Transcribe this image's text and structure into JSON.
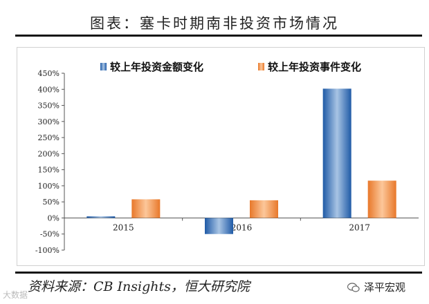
{
  "header": {
    "title": "图表：塞卡时期南非投资市场情况"
  },
  "footer": {
    "source": "资料来源：CB Insights，恒大研究院",
    "brand": "泽平宏观",
    "watermark": "大数据"
  },
  "colors": {
    "series1": "#2e6fbf",
    "series2": "#f08a3c"
  },
  "chart_data": {
    "type": "bar",
    "title": "",
    "xlabel": "",
    "ylabel": "",
    "categories": [
      "2015",
      "2016",
      "2017"
    ],
    "series": [
      {
        "name": "较上年投资金额变化",
        "values": [
          5,
          -50,
          402
        ],
        "color": "#2e6fbf"
      },
      {
        "name": "较上年投资事件变化",
        "values": [
          58,
          55,
          116
        ],
        "color": "#f08a3c"
      }
    ],
    "ylim": [
      -100,
      450
    ],
    "yticks": [
      -100,
      -50,
      0,
      50,
      100,
      150,
      200,
      250,
      300,
      350,
      400,
      450
    ],
    "ytick_labels": [
      "-100%",
      "-50%",
      "0%",
      "50%",
      "100%",
      "150%",
      "200%",
      "250%",
      "300%",
      "350%",
      "400%",
      "450%"
    ],
    "grid": false,
    "legend": "top"
  }
}
